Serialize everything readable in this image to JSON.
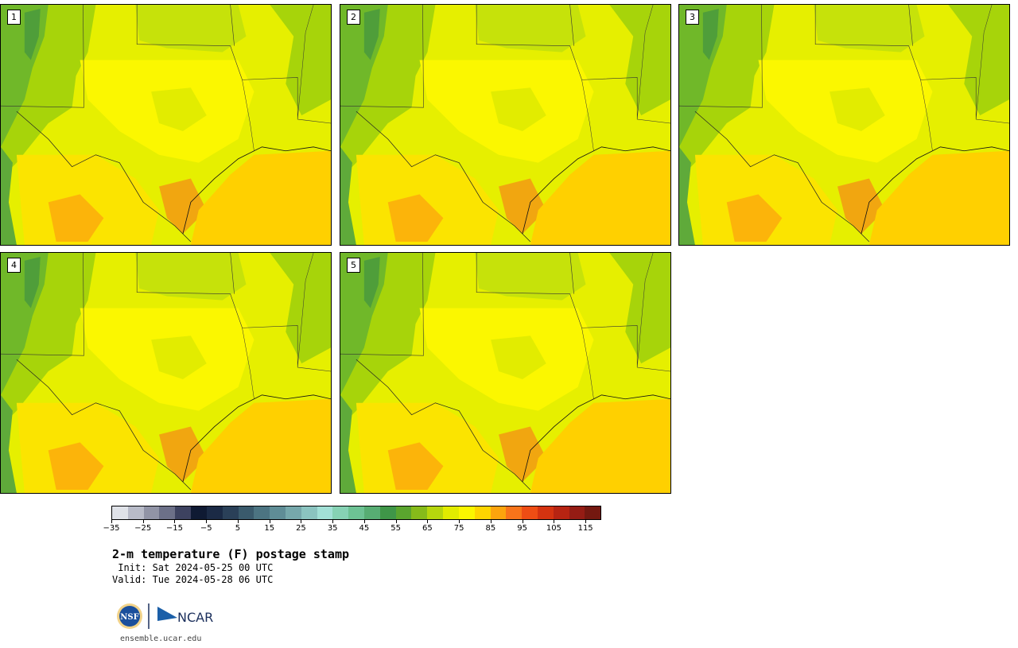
{
  "product": {
    "title": "2-m temperature (F) postage stamp",
    "init": " Init: Sat 2024-05-25 00 UTC",
    "valid": "Valid: Tue 2024-05-28 06 UTC"
  },
  "members": [
    {
      "label": "1"
    },
    {
      "label": "2"
    },
    {
      "label": "3"
    },
    {
      "label": "4"
    },
    {
      "label": "5"
    }
  ],
  "colorbar": {
    "colors": [
      "#dfe2e8",
      "#b8bbc8",
      "#9194a6",
      "#6c7088",
      "#3d4260",
      "#0f1a33",
      "#1b2a45",
      "#2a4058",
      "#3a5a6c",
      "#4c7482",
      "#5f8d96",
      "#76a8ab",
      "#8bc4c0",
      "#a2e0d6",
      "#86d2b4",
      "#6dc294",
      "#57ad73",
      "#3f9648",
      "#5aa52e",
      "#86bb1a",
      "#b6d60d",
      "#e2ec00",
      "#fbf700",
      "#fed500",
      "#fca40d",
      "#f8741a",
      "#ee4d14",
      "#d53310",
      "#b72412",
      "#951c14",
      "#741810"
    ],
    "ticks": [
      "−35",
      "−25",
      "−15",
      "−5",
      "5",
      "15",
      "25",
      "35",
      "45",
      "55",
      "65",
      "75",
      "85",
      "95",
      "105",
      "115"
    ],
    "min": -35,
    "max": 120
  },
  "logos": {
    "nsf_text": "NSF",
    "ncar_text": "NCAR",
    "url": "ensemble.ucar.edu"
  }
}
